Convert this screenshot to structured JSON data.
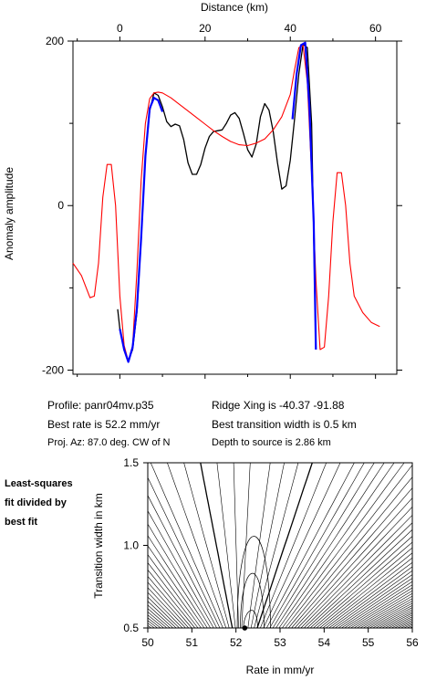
{
  "chart_data": [
    {
      "type": "line",
      "title": "",
      "xlabel": "Distance (km)",
      "ylabel": "Anomaly amplitude",
      "x_axis_position": "top",
      "xlim": [
        -11,
        65
      ],
      "ylim": [
        -205,
        200
      ],
      "x_ticks": [
        0,
        20,
        40,
        60
      ],
      "y_ticks": [
        -200,
        0,
        200
      ],
      "grid": false,
      "series": [
        {
          "color": "#000000",
          "points": [
            [
              -0.5,
              -126
            ],
            [
              0,
              -150
            ],
            [
              1,
              -176
            ],
            [
              2,
              -188
            ],
            [
              3,
              -175
            ],
            [
              4,
              -130
            ],
            [
              5,
              -40
            ],
            [
              6,
              60
            ],
            [
              7,
              115
            ],
            [
              8,
              137
            ],
            [
              9,
              134
            ],
            [
              10,
              120
            ],
            [
              11,
              102
            ],
            [
              12,
              96
            ],
            [
              13,
              99
            ],
            [
              14,
              97
            ],
            [
              15,
              80
            ],
            [
              16,
              52
            ],
            [
              17,
              38
            ],
            [
              18,
              38
            ],
            [
              19,
              50
            ],
            [
              20,
              70
            ],
            [
              21,
              84
            ],
            [
              22,
              90
            ],
            [
              23,
              91
            ],
            [
              24,
              92
            ],
            [
              25,
              100
            ],
            [
              26,
              110
            ],
            [
              27,
              113
            ],
            [
              28,
              106
            ],
            [
              29,
              88
            ],
            [
              30,
              68
            ],
            [
              31,
              59
            ],
            [
              32,
              75
            ],
            [
              33,
              108
            ],
            [
              34,
              124
            ],
            [
              35,
              116
            ],
            [
              36,
              90
            ],
            [
              37,
              52
            ],
            [
              38,
              20
            ],
            [
              39,
              24
            ],
            [
              40,
              55
            ],
            [
              41,
              105
            ],
            [
              42,
              160
            ],
            [
              43,
              196
            ],
            [
              44,
              192
            ],
            [
              45,
              100
            ],
            [
              46,
              -175
            ]
          ]
        },
        {
          "color": "#ff0000",
          "points": [
            [
              -11,
              -70
            ],
            [
              -9,
              -85
            ],
            [
              -7,
              -112
            ],
            [
              -6,
              -110
            ],
            [
              -5,
              -70
            ],
            [
              -4,
              10
            ],
            [
              -3,
              50
            ],
            [
              -2,
              50
            ],
            [
              -1,
              0
            ],
            [
              0,
              -110
            ],
            [
              1,
              -170
            ],
            [
              2,
              -189
            ],
            [
              3,
              -170
            ],
            [
              4,
              -80
            ],
            [
              5,
              30
            ],
            [
              6,
              100
            ],
            [
              7,
              130
            ],
            [
              8,
              137
            ],
            [
              9,
              138
            ],
            [
              10,
              137
            ],
            [
              12,
              131
            ],
            [
              14,
              123
            ],
            [
              16,
              115
            ],
            [
              18,
              107
            ],
            [
              20,
              99
            ],
            [
              22,
              91
            ],
            [
              24,
              84
            ],
            [
              26,
              78
            ],
            [
              28,
              74
            ],
            [
              30,
              73
            ],
            [
              32,
              76
            ],
            [
              34,
              81
            ],
            [
              36,
              92
            ],
            [
              38,
              108
            ],
            [
              40,
              135
            ],
            [
              41,
              165
            ],
            [
              42,
              192
            ],
            [
              43,
              195
            ],
            [
              44,
              150
            ],
            [
              45,
              40
            ],
            [
              46,
              -90
            ],
            [
              47,
              -175
            ],
            [
              48,
              -172
            ],
            [
              49,
              -110
            ],
            [
              50,
              -20
            ],
            [
              51,
              40
            ],
            [
              52,
              40
            ],
            [
              53,
              0
            ],
            [
              54,
              -70
            ],
            [
              55,
              -110
            ],
            [
              57,
              -130
            ],
            [
              59,
              -142
            ],
            [
              61,
              -147
            ]
          ]
        },
        {
          "color": "#0000ff",
          "points": [
            [
              0,
              -150
            ],
            [
              1,
              -175
            ],
            [
              2,
              -190
            ],
            [
              3,
              -172
            ],
            [
              4,
              -125
            ],
            [
              5,
              -40
            ],
            [
              6,
              60
            ],
            [
              7,
              118
            ],
            [
              8,
              131
            ],
            [
              9,
              128
            ],
            [
              10,
              114
            ]
          ]
        },
        {
          "color": "#0000ff",
          "points": [
            [
              40.5,
              105
            ],
            [
              41.5,
              160
            ],
            [
              42.5,
              195
            ],
            [
              43.5,
              198
            ],
            [
              44.5,
              120
            ],
            [
              45.5,
              -20
            ],
            [
              46,
              -175
            ]
          ]
        }
      ]
    },
    {
      "type": "contour",
      "title": "",
      "xlabel": "Rate in mm/yr",
      "ylabel": "Transition width in km",
      "xlim": [
        50,
        56
      ],
      "ylim": [
        0.5,
        1.5
      ],
      "x_ticks": [
        50,
        51,
        52,
        53,
        54,
        55,
        56
      ],
      "y_ticks": [
        0.5,
        1.0,
        1.5
      ],
      "best_fit_point": [
        52.2,
        0.5
      ],
      "grid": false
    }
  ],
  "info": {
    "profile": "Profile: panr04mv.p35",
    "best_rate": "Best rate is 52.2 mm/yr",
    "proj_az": "Proj. Az: 87.0 deg. CW of N",
    "ridge_xing": "Ridge Xing is -40.37 -91.88",
    "best_width": "Best transition width is 0.5 km",
    "depth": "Depth to source is   2.86 km"
  },
  "side_label": [
    "Least-squares",
    "fit divided by",
    "best fit"
  ]
}
